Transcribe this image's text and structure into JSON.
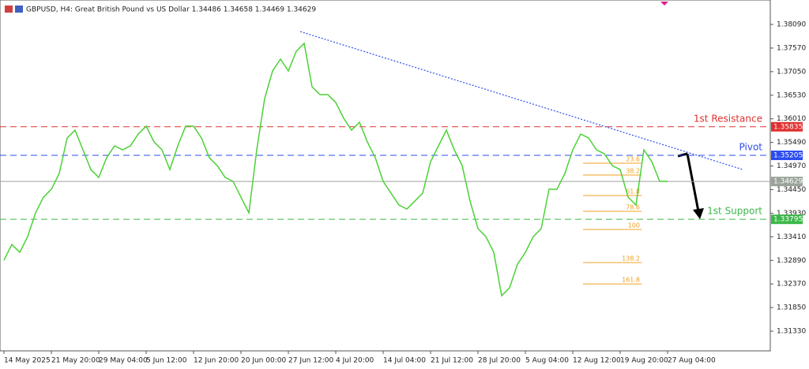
{
  "chart_data": {
    "type": "line",
    "title": "GBPUSD, H4:  Great British Pound vs US Dollar  1.34486 1.34658 1.34469 1.34629",
    "categories": [
      "14 May 2025",
      null,
      null,
      null,
      null,
      null,
      "21 May 20:00",
      null,
      null,
      null,
      null,
      null,
      "29 May 04:00",
      null,
      null,
      null,
      null,
      null,
      "5 Jun 12:00",
      null,
      null,
      null,
      null,
      null,
      "12 Jun 20:00",
      null,
      null,
      null,
      null,
      null,
      "20 Jun 00:00",
      null,
      null,
      null,
      null,
      null,
      "27 Jun 12:00",
      null,
      null,
      null,
      null,
      null,
      "4 Jul 20:00",
      null,
      null,
      null,
      null,
      null,
      "14 Jul 04:00",
      null,
      null,
      null,
      null,
      null,
      "21 Jul 12:00",
      null,
      null,
      null,
      null,
      null,
      "28 Jul 20:00",
      null,
      null,
      null,
      null,
      null,
      "5 Aug 04:00",
      null,
      null,
      null,
      null,
      null,
      "12 Aug 12:00",
      null,
      null,
      null,
      null,
      null,
      "19 Aug 20:00",
      null,
      null,
      null,
      null,
      null,
      "27 Aug 04:00"
    ],
    "series": [
      {
        "name": "GBPUSD",
        "color": "#4cd137",
        "values": [
          1.32894,
          1.33241,
          1.33068,
          1.33415,
          1.33937,
          1.34284,
          1.34458,
          1.34806,
          1.35588,
          1.35761,
          1.35327,
          1.34892,
          1.34719,
          1.35153,
          1.35414,
          1.35327,
          1.35414,
          1.35675,
          1.35848,
          1.35501,
          1.35327,
          1.34892,
          1.35414,
          1.35848,
          1.35848,
          1.35588,
          1.35153,
          1.34979,
          1.34719,
          1.34632,
          1.34284,
          1.33937,
          1.35327,
          1.36457,
          1.37065,
          1.37326,
          1.37065,
          1.37499,
          1.37673,
          1.36717,
          1.36543,
          1.36543,
          1.3637,
          1.36022,
          1.35761,
          1.35935,
          1.35501,
          1.35153,
          1.34632,
          1.34371,
          1.3411,
          1.34023,
          1.34197,
          1.34371,
          1.35066,
          1.35414,
          1.35761,
          1.35327,
          1.34979,
          1.34197,
          1.33589,
          1.33415,
          1.33068,
          1.32112,
          1.32286,
          1.32807,
          1.33068,
          1.33415,
          1.33589,
          1.34458,
          1.34458,
          1.34806,
          1.35327,
          1.35675,
          1.35588,
          1.35327,
          1.3524,
          1.34979,
          1.34892,
          1.34284,
          1.3411,
          1.35327,
          1.35066,
          1.34632,
          1.34632
        ]
      }
    ],
    "xlim": [
      -0.5,
      97
    ],
    "ylim": [
      1.30896,
      1.38629
    ],
    "yticks": [
      {
        "value": 1.3809,
        "label": "1.38090"
      },
      {
        "value": 1.3757,
        "label": "1.37570"
      },
      {
        "value": 1.3705,
        "label": "1.37050"
      },
      {
        "value": 1.3653,
        "label": "1.36530"
      },
      {
        "value": 1.3601,
        "label": "1.36010"
      },
      {
        "value": 1.3549,
        "label": "1.35490"
      },
      {
        "value": 1.3497,
        "label": "1.34970"
      },
      {
        "value": 1.3445,
        "label": "1.34450"
      },
      {
        "value": 1.3393,
        "label": "1.33930"
      },
      {
        "value": 1.3341,
        "label": "1.33410"
      },
      {
        "value": 1.3289,
        "label": "1.32890"
      },
      {
        "value": 1.3237,
        "label": "1.32370"
      },
      {
        "value": 1.3185,
        "label": "1.31850"
      },
      {
        "value": 1.3133,
        "label": "1.31330"
      }
    ],
    "levels": [
      {
        "name": "1st Resistance",
        "value": 1.35835,
        "color": "#e03030"
      },
      {
        "name": "Pivot",
        "value": 1.35205,
        "color": "#2b4cf0"
      },
      {
        "name": "1st Support",
        "value": 1.33795,
        "color": "#3cb84a"
      }
    ],
    "current_price": {
      "value": 1.34629,
      "color": "#9aa39a"
    },
    "trendline": {
      "x": [
        37.5,
        93.5
      ],
      "y": [
        1.37934,
        1.34893
      ],
      "color": "#2b4cf0"
    },
    "fibonacci": {
      "color": "#f0a020",
      "levels": [
        {
          "level": 23.6,
          "price": 1.35031
        },
        {
          "level": 38.2,
          "price": 1.34771
        },
        {
          "level": 61.8,
          "price": 1.34319
        },
        {
          "level": 78.6,
          "price": 1.33971
        },
        {
          "level": 100,
          "price": 1.33572
        },
        {
          "level": 138.2,
          "price": 1.32842
        },
        {
          "level": 161.8,
          "price": 1.32372
        }
      ]
    }
  }
}
